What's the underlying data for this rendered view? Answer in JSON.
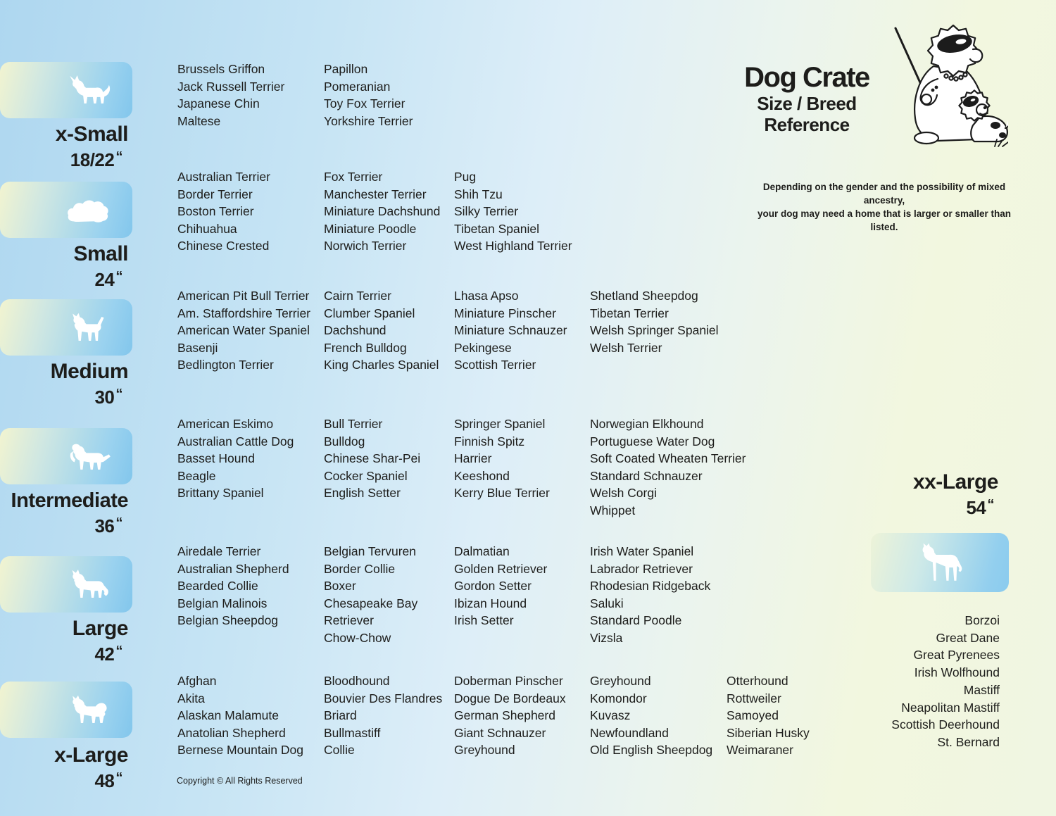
{
  "title": {
    "main": "Dog Crate",
    "sub1": "Size / Breed",
    "sub2": "Reference"
  },
  "note": {
    "line1": "Depending on the gender and the possibility of mixed ancestry,",
    "line2": "your dog may need  a home that is larger or smaller than listed."
  },
  "inch_mark": "“",
  "footer": {
    "copyright": "Copyright © All Rights Reserved"
  },
  "colors": {
    "background_left": "#aed7f0",
    "background_right": "#f0f6e2",
    "badge_cream": "#f2f4d0",
    "badge_blue": "#82c6ec",
    "text": "#1d1d1b",
    "silhouette": "#ffffff"
  },
  "categories": [
    {
      "id": "x-small",
      "label": "x-Small",
      "size": "18/22",
      "icon": "papillon-dog-icon",
      "columns": [
        [
          "Brussels Griffon",
          "Jack Russell Terrier",
          "Japanese Chin",
          "Maltese"
        ],
        [
          "Papillon",
          "Pomeranian",
          "Toy Fox Terrier",
          "Yorkshire Terrier"
        ]
      ]
    },
    {
      "id": "small",
      "label": "Small",
      "size": "24",
      "icon": "shih-tzu-dog-icon",
      "columns": [
        [
          "Australian Terrier",
          "Border Terrier",
          "Boston Terrier",
          "Chihuahua",
          "Chinese Crested"
        ],
        [
          "Fox Terrier",
          "Manchester Terrier",
          "Miniature Dachshund",
          "Miniature Poodle",
          "Norwich Terrier"
        ],
        [
          "Pug",
          "Shih Tzu",
          "Silky Terrier",
          "Tibetan Spaniel",
          "West Highland Terrier"
        ]
      ]
    },
    {
      "id": "medium",
      "label": "Medium",
      "size": "30",
      "icon": "terrier-dog-icon",
      "columns": [
        [
          "American Pit Bull Terrier",
          "Am. Staffordshire Terrier",
          "American Water Spaniel",
          "Basenji",
          "Bedlington Terrier"
        ],
        [
          "Cairn Terrier",
          "Clumber Spaniel",
          "Dachshund",
          "French Bulldog",
          "King Charles Spaniel"
        ],
        [
          "Lhasa Apso",
          "Miniature Pinscher",
          "Miniature Schnauzer",
          "Pekingese",
          "Scottish Terrier"
        ],
        [
          "Shetland Sheepdog",
          "Tibetan Terrier",
          "Welsh Springer Spaniel",
          "Welsh Terrier"
        ]
      ]
    },
    {
      "id": "intermediate",
      "label": "Intermediate",
      "size": "36",
      "icon": "spaniel-dog-icon",
      "columns": [
        [
          "American Eskimo",
          "Australian Cattle Dog",
          "Basset Hound",
          "Beagle",
          "Brittany Spaniel"
        ],
        [
          "Bull Terrier",
          "Bulldog",
          "Chinese Shar-Pei",
          "Cocker Spaniel",
          "English Setter"
        ],
        [
          "Springer Spaniel",
          "Finnish Spitz",
          "Harrier",
          "Keeshond",
          "Kerry Blue Terrier"
        ],
        [
          "Norwegian Elkhound",
          "Portuguese Water Dog",
          "Soft Coated Wheaten Terrier",
          "Standard Schnauzer",
          "Welsh Corgi",
          "Whippet"
        ]
      ]
    },
    {
      "id": "large",
      "label": "Large",
      "size": "42",
      "icon": "shepherd-dog-icon",
      "columns": [
        [
          "Airedale Terrier",
          "Australian Shepherd",
          "Bearded Collie",
          "Belgian Malinois",
          "Belgian Sheepdog"
        ],
        [
          "Belgian Tervuren",
          "Border Collie",
          "Boxer",
          "Chesapeake Bay Retriever",
          "Chow-Chow"
        ],
        [
          "Dalmatian",
          "Golden Retriever",
          "Gordon Setter",
          "Ibizan Hound",
          "Irish Setter"
        ],
        [
          "Irish Water Spaniel",
          "Labrador Retriever",
          "Rhodesian Ridgeback",
          "Saluki",
          "Standard Poodle",
          "Vizsla"
        ]
      ]
    },
    {
      "id": "x-large",
      "label": "x-Large",
      "size": "48",
      "icon": "akita-dog-icon",
      "columns": [
        [
          "Afghan",
          "Akita",
          "Alaskan Malamute",
          "Anatolian Shepherd",
          "Bernese Mountain Dog"
        ],
        [
          "Bloodhound",
          "Bouvier Des Flandres",
          "Briard",
          "Bullmastiff",
          "Collie"
        ],
        [
          "Doberman Pinscher",
          "Dogue De Bordeaux",
          "German Shepherd",
          "Giant Schnauzer",
          "Greyhound"
        ],
        [
          "Greyhound",
          "Komondor",
          "Kuvasz",
          "Newfoundland",
          "Old English Sheepdog"
        ],
        [
          "Otterhound",
          "Rottweiler",
          "Samoyed",
          "Siberian Husky",
          "Weimaraner"
        ]
      ]
    },
    {
      "id": "xx-large",
      "label": "xx-Large",
      "size": "54",
      "icon": "great-dane-dog-icon",
      "breeds": [
        "Borzoi",
        "Great Dane",
        "Great Pyrenees",
        "Irish Wolfhound",
        "Mastiff",
        "Neapolitan Mastiff",
        "Scottish Deerhound",
        "St. Bernard"
      ]
    }
  ]
}
